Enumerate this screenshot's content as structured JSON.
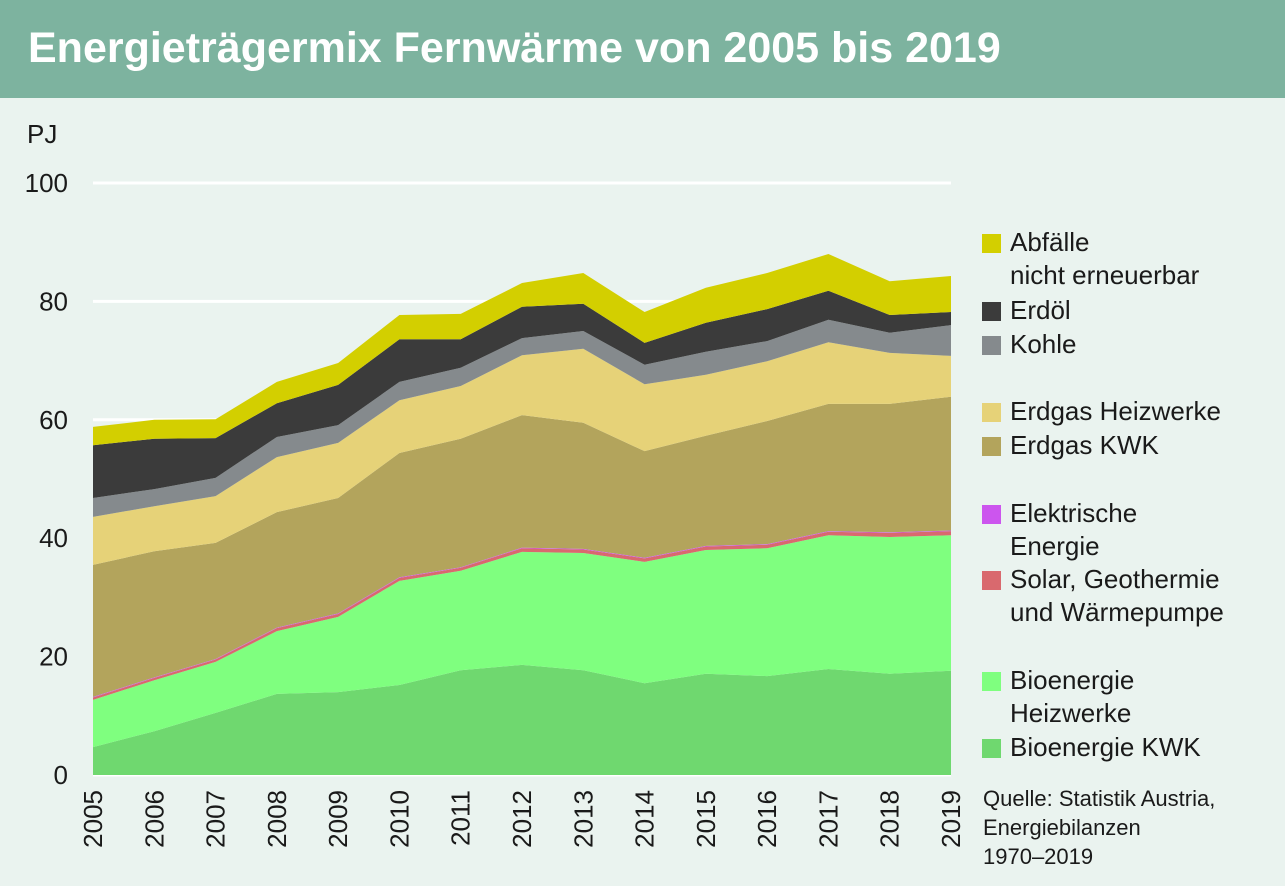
{
  "chart_data": {
    "type": "stacked-area",
    "title": "Energieträgermix Fernwärme von 2005 bis 2019",
    "y_label": "PJ",
    "source": "Quelle: Statistik Austria,\nEnergiebilanzen\n1970–2019",
    "categories": [
      "2005",
      "2006",
      "2007",
      "2008",
      "2009",
      "2010",
      "2011",
      "2012",
      "2013",
      "2014",
      "2015",
      "2016",
      "2017",
      "2018",
      "2019"
    ],
    "ylim": [
      0,
      100
    ],
    "yticks": [
      0,
      20,
      40,
      60,
      80,
      100
    ],
    "grid": true,
    "series": [
      {
        "name": "Bioenergie KWK",
        "color": "#6fd86f",
        "values": [
          4.7,
          7.4,
          10.5,
          13.7,
          14.0,
          15.2,
          17.7,
          18.6,
          17.7,
          15.5,
          17.1,
          16.7,
          17.9,
          17.1,
          17.6
        ]
      },
      {
        "name": "Bioenergie\nHeizwerke",
        "color": "#7fff7f",
        "values": [
          8.0,
          8.6,
          8.6,
          10.6,
          12.7,
          17.6,
          16.8,
          19.1,
          19.8,
          20.5,
          20.9,
          21.6,
          22.6,
          23.1,
          22.9
        ]
      },
      {
        "name": "Solar, Geothermie\nund Wärmepumpe",
        "color": "#d9696e",
        "values": [
          0.4,
          0.4,
          0.4,
          0.5,
          0.5,
          0.5,
          0.5,
          0.6,
          0.6,
          0.6,
          0.6,
          0.6,
          0.6,
          0.7,
          0.7
        ]
      },
      {
        "name": "Elektrische\nEnergie",
        "color": "#cc55ee",
        "values": [
          0.1,
          0.1,
          0.1,
          0.1,
          0.1,
          0.1,
          0.1,
          0.1,
          0.1,
          0.1,
          0.1,
          0.1,
          0.1,
          0.1,
          0.1
        ]
      },
      {
        "name": "Erdgas KWK",
        "color": "#b3a45c",
        "values": [
          22.3,
          21.3,
          19.6,
          19.5,
          19.5,
          21.0,
          21.7,
          22.4,
          21.3,
          18.0,
          18.6,
          20.8,
          21.5,
          21.7,
          22.6
        ]
      },
      {
        "name": "Erdgas Heizwerke",
        "color": "#e6d278",
        "values": [
          8.1,
          7.6,
          7.9,
          9.3,
          9.3,
          8.9,
          8.9,
          10.1,
          12.5,
          11.3,
          10.3,
          10.1,
          10.4,
          8.6,
          6.9
        ]
      },
      {
        "name": "Kohle",
        "color": "#858a8d",
        "values": [
          3.2,
          2.9,
          3.1,
          3.4,
          3.0,
          3.1,
          3.1,
          2.9,
          3.0,
          3.3,
          3.9,
          3.4,
          3.8,
          3.4,
          5.2
        ]
      },
      {
        "name": "Erdöl",
        "color": "#3b3b3b",
        "values": [
          8.9,
          8.5,
          6.7,
          5.7,
          6.8,
          7.2,
          4.8,
          5.3,
          4.6,
          3.7,
          4.9,
          5.4,
          4.9,
          3.0,
          2.2
        ]
      },
      {
        "name": "Abfälle\nnicht erneuerbar",
        "color": "#d3cf00",
        "values": [
          3.1,
          3.2,
          3.2,
          3.6,
          3.7,
          4.1,
          4.3,
          4.0,
          5.2,
          5.2,
          5.9,
          6.1,
          6.2,
          5.7,
          6.1
        ]
      }
    ]
  }
}
